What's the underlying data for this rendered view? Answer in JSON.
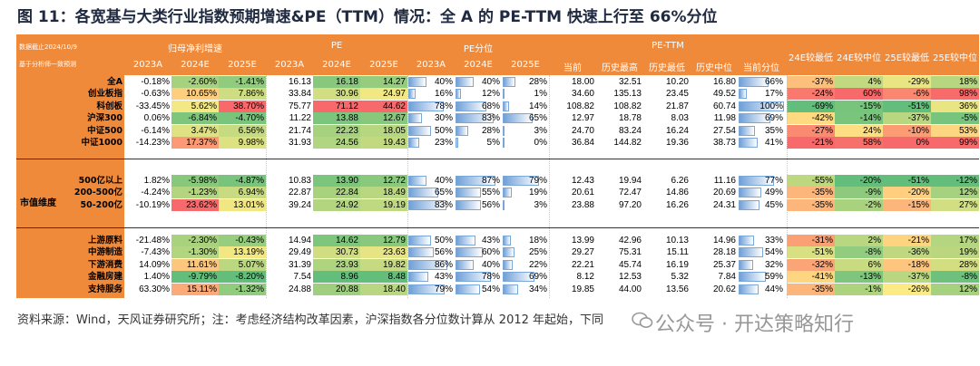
{
  "title": "图 11：各宽基与大类行业指数预期增速&PE（TTM）情况：全 A 的 PE-TTM 快速上行至 66%分位",
  "header": {
    "note1": "数据截止2024/10/9",
    "note2": "基于分析师一致预测",
    "groups": {
      "growth": "归母净利增速",
      "pe": "PE",
      "pe_pct": "PE分位",
      "pe_ttm": "PE-TTM"
    },
    "years": [
      "2023A",
      "2024E",
      "2025E"
    ],
    "ttm_cols": [
      "当前",
      "历史最高",
      "历史最低",
      "历史中位",
      "当前分位"
    ],
    "compare_cols": [
      "24E较最低",
      "24E较中位",
      "25E较最低",
      "25E较中位"
    ]
  },
  "side_label": "市值维度",
  "rows": [
    {
      "name": "全A",
      "g": [
        "-0.18%",
        "-2.60%",
        "-1.41%"
      ],
      "pe": [
        "16.13",
        "16.18",
        "14.27"
      ],
      "pct": [
        "40%",
        "40%",
        "28%"
      ],
      "ttm": [
        "18.00",
        "32.51",
        "10.20",
        "16.80",
        "66%"
      ],
      "cmp": [
        "-37%",
        "4%",
        "-29%",
        "18%"
      ]
    },
    {
      "name": "创业板指",
      "g": [
        "-0.63%",
        "10.65%",
        "7.86%"
      ],
      "pe": [
        "33.84",
        "30.96",
        "24.97"
      ],
      "pct": [
        "16%",
        "12%",
        "1%"
      ],
      "ttm": [
        "34.60",
        "135.13",
        "23.45",
        "49.52",
        "17%"
      ],
      "cmp": [
        "-24%",
        "60%",
        "-6%",
        "98%"
      ]
    },
    {
      "name": "科创板",
      "g": [
        "-33.45%",
        "5.62%",
        "38.70%"
      ],
      "pe": [
        "75.77",
        "71.12",
        "44.62"
      ],
      "pct": [
        "78%",
        "68%",
        "14%"
      ],
      "ttm": [
        "108.82",
        "108.82",
        "21.87",
        "60.74",
        "100%"
      ],
      "cmp": [
        "-69%",
        "-15%",
        "-51%",
        "36%"
      ]
    },
    {
      "name": "沪深300",
      "g": [
        "0.06%",
        "-6.84%",
        "-4.70%"
      ],
      "pe": [
        "11.22",
        "13.88",
        "12.67"
      ],
      "pct": [
        "30%",
        "83%",
        "65%"
      ],
      "ttm": [
        "12.97",
        "18.78",
        "8.03",
        "11.98",
        "69%"
      ],
      "cmp": [
        "-42%",
        "-14%",
        "-37%",
        "-5%"
      ]
    },
    {
      "name": "中证500",
      "g": [
        "-6.14%",
        "3.47%",
        "6.56%"
      ],
      "pe": [
        "21.74",
        "22.23",
        "18.05"
      ],
      "pct": [
        "50%",
        "28%",
        "3%"
      ],
      "ttm": [
        "24.70",
        "83.24",
        "16.24",
        "27.54",
        "35%"
      ],
      "cmp": [
        "-27%",
        "24%",
        "-10%",
        "53%"
      ]
    },
    {
      "name": "中证1000",
      "g": [
        "-14.23%",
        "17.37%",
        "9.98%"
      ],
      "pe": [
        "31.93",
        "24.56",
        "19.43"
      ],
      "pct": [
        "23%",
        "5%",
        "0%"
      ],
      "ttm": [
        "36.84",
        "144.82",
        "19.36",
        "38.73",
        "41%"
      ],
      "cmp": [
        "-21%",
        "58%",
        "0%",
        "99%"
      ]
    },
    {
      "name": "500亿以上",
      "g": [
        "1.82%",
        "-5.98%",
        "-4.87%"
      ],
      "pe": [
        "10.83",
        "13.90",
        "12.72"
      ],
      "pct": [
        "40%",
        "87%",
        "79%"
      ],
      "ttm": [
        "12.43",
        "19.94",
        "6.26",
        "11.16",
        "77%"
      ],
      "cmp": [
        "-55%",
        "-20%",
        "-51%",
        "-12%"
      ]
    },
    {
      "name": "200-500亿",
      "g": [
        "-4.24%",
        "-1.23%",
        "6.94%"
      ],
      "pe": [
        "22.87",
        "22.84",
        "18.49"
      ],
      "pct": [
        "65%",
        "55%",
        "19%"
      ],
      "ttm": [
        "20.61",
        "72.47",
        "14.86",
        "20.69",
        "49%"
      ],
      "cmp": [
        "-35%",
        "-9%",
        "-20%",
        "12%"
      ]
    },
    {
      "name": "50-200亿",
      "g": [
        "-10.19%",
        "23.62%",
        "13.01%"
      ],
      "pe": [
        "39.24",
        "24.92",
        "19.19"
      ],
      "pct": [
        "83%",
        "56%",
        "3%"
      ],
      "ttm": [
        "23.88",
        "97.20",
        "16.26",
        "24.31",
        "45%"
      ],
      "cmp": [
        "-35%",
        "-2%",
        "-15%",
        "27%"
      ]
    },
    {
      "name": "上游原料",
      "g": [
        "-21.48%",
        "-2.30%",
        "-0.43%"
      ],
      "pe": [
        "14.94",
        "14.62",
        "12.79"
      ],
      "pct": [
        "50%",
        "43%",
        "18%"
      ],
      "ttm": [
        "13.99",
        "42.96",
        "10.13",
        "14.96",
        "33%"
      ],
      "cmp": [
        "-31%",
        "2%",
        "-21%",
        "17%"
      ]
    },
    {
      "name": "中游制造",
      "g": [
        "-7.43%",
        "-1.30%",
        "13.19%"
      ],
      "pe": [
        "29.49",
        "30.73",
        "23.63"
      ],
      "pct": [
        "56%",
        "60%",
        "25%"
      ],
      "ttm": [
        "29.27",
        "75.31",
        "15.11",
        "28.18",
        "54%"
      ],
      "cmp": [
        "-51%",
        "-8%",
        "-36%",
        "19%"
      ]
    },
    {
      "name": "下游消费",
      "g": [
        "14.09%",
        "11.61%",
        "5.07%"
      ],
      "pe": [
        "31.39",
        "23.93",
        "19.82"
      ],
      "pct": [
        "86%",
        "40%",
        "22%"
      ],
      "ttm": [
        "22.21",
        "45.74",
        "16.19",
        "25.37",
        "32%"
      ],
      "cmp": [
        "-32%",
        "6%",
        "-18%",
        "28%"
      ]
    },
    {
      "name": "金融房建",
      "g": [
        "1.40%",
        "-9.79%",
        "-8.20%"
      ],
      "pe": [
        "7.54",
        "8.96",
        "8.48"
      ],
      "pct": [
        "43%",
        "78%",
        "69%"
      ],
      "ttm": [
        "8.12",
        "12.53",
        "5.32",
        "7.84",
        "59%"
      ],
      "cmp": [
        "-41%",
        "-13%",
        "-37%",
        "-8%"
      ]
    },
    {
      "name": "支持服务",
      "g": [
        "63.30%",
        "15.11%",
        "-1.32%"
      ],
      "pe": [
        "24.88",
        "20.88",
        "18.40"
      ],
      "pct": [
        "79%",
        "54%",
        "34%"
      ],
      "ttm": [
        "19.85",
        "44.00",
        "13.56",
        "20.62",
        "44%"
      ],
      "cmp": [
        "-35%",
        "-1%",
        "-26%",
        "12%"
      ]
    }
  ],
  "source": "资料来源：Wind，天风证券研究所；注：考虑经济结构改革因素，沪深指数各分位数计算从 2012 年起始，下同",
  "watermark": "公众号 · 开达策略知行",
  "colors": {
    "header": "#f08a3b",
    "green": "#63be7b",
    "yellow": "#ffeb84",
    "red": "#f8696b",
    "bar": "#6fa0d8"
  }
}
